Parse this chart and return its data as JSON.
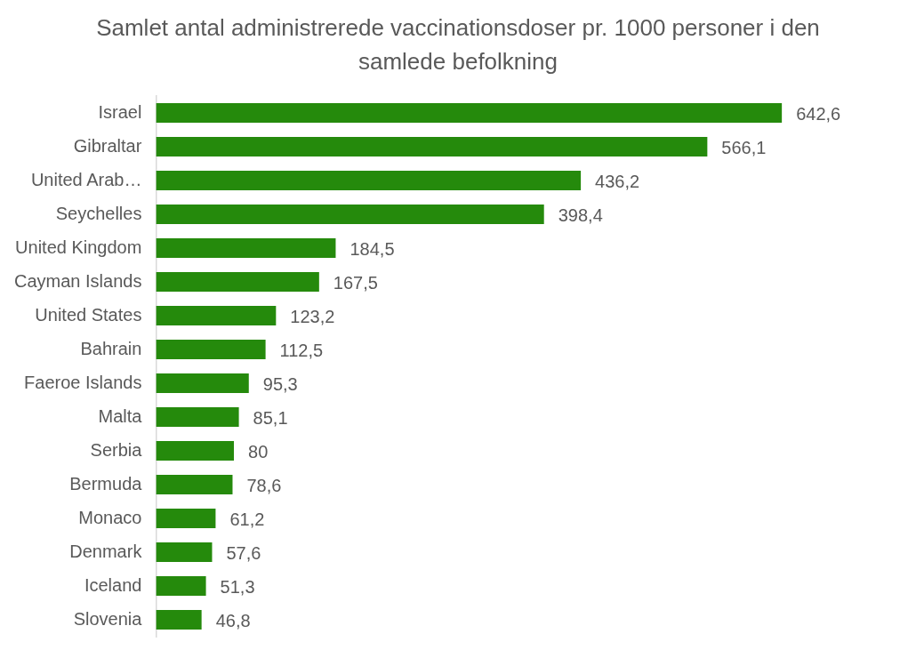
{
  "chart_data": {
    "type": "bar",
    "orientation": "horizontal",
    "title": "Samlet antal administrerede vaccinationsdoser pr. 1000 personer i den samlede befolkning",
    "categories": [
      "Israel",
      "Gibraltar",
      "United Arab…",
      "Seychelles",
      "United Kingdom",
      "Cayman Islands",
      "United States",
      "Bahrain",
      "Faeroe Islands",
      "Malta",
      "Serbia",
      "Bermuda",
      "Monaco",
      "Denmark",
      "Iceland",
      "Slovenia"
    ],
    "values": [
      642.6,
      566.1,
      436.2,
      398.4,
      184.5,
      167.5,
      123.2,
      112.5,
      95.3,
      85.1,
      80,
      78.6,
      61.2,
      57.6,
      51.3,
      46.8
    ],
    "value_labels": [
      "642,6",
      "566,1",
      "436,2",
      "398,4",
      "184,5",
      "167,5",
      "123,2",
      "112,5",
      "95,3",
      "85,1",
      "80",
      "78,6",
      "61,2",
      "57,6",
      "51,3",
      "46,8"
    ],
    "color": "#258a0c",
    "legend": false
  }
}
